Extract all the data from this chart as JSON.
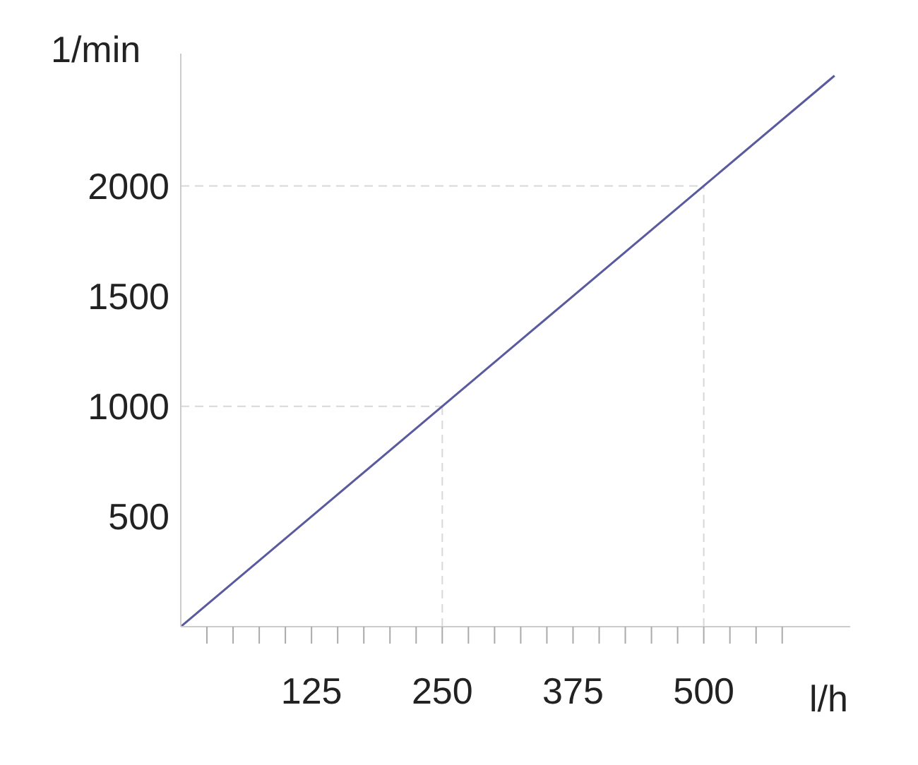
{
  "chart_data": {
    "type": "line",
    "xlabel": "l/h",
    "ylabel": "1/min",
    "x": [
      0,
      625
    ],
    "series": [
      {
        "color": "#5a5a9e",
        "values": [
          0,
          2500
        ]
      }
    ],
    "xlim": [
      0,
      640
    ],
    "ylim": [
      0,
      2600
    ],
    "xticks": [
      {
        "value": 25,
        "label": null
      },
      {
        "value": 50,
        "label": null
      },
      {
        "value": 75,
        "label": null
      },
      {
        "value": 100,
        "label": null
      },
      125,
      {
        "value": 150,
        "label": null
      },
      {
        "value": 175,
        "label": null
      },
      {
        "value": 200,
        "label": null
      },
      {
        "value": 225,
        "label": null
      },
      250,
      {
        "value": 275,
        "label": null
      },
      {
        "value": 300,
        "label": null
      },
      {
        "value": 325,
        "label": null
      },
      {
        "value": 350,
        "label": null
      },
      375,
      {
        "value": 400,
        "label": null
      },
      {
        "value": 425,
        "label": null
      },
      {
        "value": 450,
        "label": null
      },
      {
        "value": 475,
        "label": null
      },
      500,
      {
        "value": 525,
        "label": null
      },
      {
        "value": 550,
        "label": null
      },
      {
        "value": 575,
        "label": null
      }
    ],
    "yticks": [
      500,
      1000,
      1500,
      2000
    ],
    "ref_lines": [
      {
        "axis": "y",
        "value": 1000,
        "label": null,
        "line_style": "dashed",
        "color": "#d8d8d8"
      },
      {
        "axis": "y",
        "value": 2000,
        "label": null,
        "line_style": "dashed",
        "color": "#d8d8d8"
      },
      {
        "axis": "x",
        "value": 250,
        "label": null,
        "line_style": "dashed",
        "color": "#d8d8d8"
      },
      {
        "axis": "x",
        "value": 500,
        "label": null,
        "line_style": "dashed",
        "color": "#d8d8d8"
      }
    ],
    "marker": "none",
    "line_style": "solid",
    "grid": false,
    "legend": false
  }
}
